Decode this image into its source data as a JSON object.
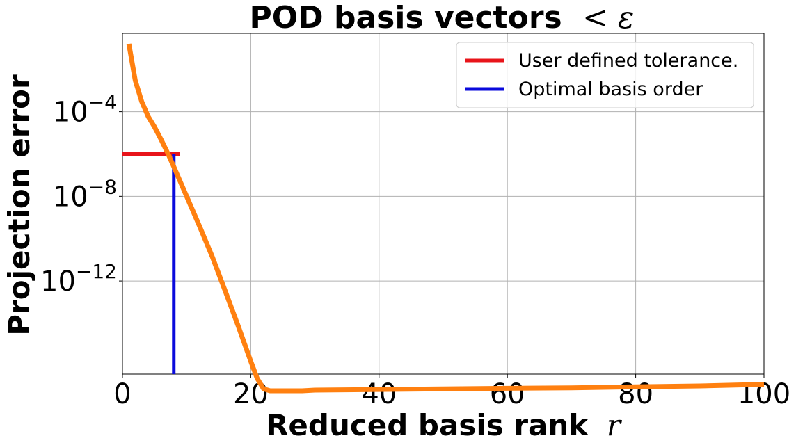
{
  "chart_data": {
    "type": "line",
    "title": "POD basis vectors",
    "title_math": "< ε",
    "xlabel": "Reduced basis rank",
    "xlabel_math": "r",
    "ylabel": "Projection error",
    "xlim": [
      0,
      100
    ],
    "ylim_log10": [
      -16.4,
      -0.3
    ],
    "y_scale": "log",
    "grid": true,
    "legend_position": "top-right",
    "x_ticks": [
      {
        "value": 0,
        "label": "0"
      },
      {
        "value": 20,
        "label": "20"
      },
      {
        "value": 40,
        "label": "40"
      },
      {
        "value": 60,
        "label": "60"
      },
      {
        "value": 80,
        "label": "80"
      },
      {
        "value": 100,
        "label": "100"
      }
    ],
    "y_ticks": [
      {
        "log10": -4,
        "base": "10",
        "exp": "−4"
      },
      {
        "log10": -8,
        "base": "10",
        "exp": "−8"
      },
      {
        "log10": -12,
        "base": "10",
        "exp": "−12"
      }
    ],
    "series": [
      {
        "color": "#ff8010",
        "x": [
          1,
          2,
          3,
          4,
          5,
          6,
          7,
          8,
          10,
          12,
          14,
          16,
          18,
          20,
          21,
          22,
          23,
          25,
          28,
          30,
          40,
          50,
          60,
          70,
          80,
          90,
          100
        ],
        "y": [
          0.16,
          0.003,
          0.0003,
          6e-05,
          1.9e-05,
          5e-06,
          1.2e-06,
          2.5e-07,
          1e-08,
          4e-10,
          1.4e-11,
          3.5e-13,
          8e-15,
          1.6e-16,
          2.5e-17,
          8e-18,
          6.5e-18,
          6.5e-18,
          6.5e-18,
          7e-18,
          7.5e-18,
          8e-18,
          8.5e-18,
          9e-18,
          1e-17,
          1.1e-17,
          1.3e-17
        ]
      }
    ],
    "tolerance": {
      "name": "User defined tolerance.",
      "color": "#e8141a",
      "y": 1e-06,
      "x_range": [
        0,
        9
      ]
    },
    "optimal_order": {
      "name": "Optimal basis order",
      "color": "#0a0adc",
      "x": 8
    }
  }
}
